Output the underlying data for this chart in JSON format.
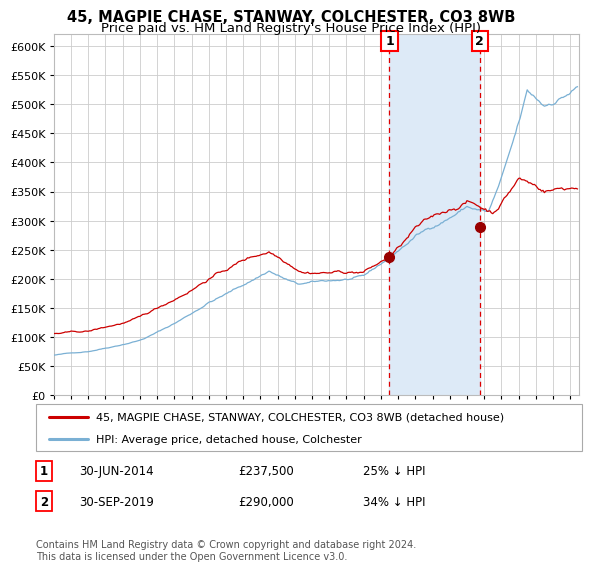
{
  "title": "45, MAGPIE CHASE, STANWAY, COLCHESTER, CO3 8WB",
  "subtitle": "Price paid vs. HM Land Registry's House Price Index (HPI)",
  "title_fontsize": 10.5,
  "subtitle_fontsize": 9.5,
  "hpi_color": "#7ab0d4",
  "price_color": "#cc0000",
  "marker_color": "#990000",
  "background_color": "#ffffff",
  "plot_bg_color": "#ffffff",
  "grid_color": "#cccccc",
  "shade_color": "#ddeaf7",
  "ylim": [
    0,
    620000
  ],
  "yticks": [
    0,
    50000,
    100000,
    150000,
    200000,
    250000,
    300000,
    350000,
    400000,
    450000,
    500000,
    550000,
    600000
  ],
  "sale1_date": 2014.5,
  "sale1_price": 237500,
  "sale2_date": 2019.75,
  "sale2_price": 290000,
  "legend_label_price": "45, MAGPIE CHASE, STANWAY, COLCHESTER, CO3 8WB (detached house)",
  "legend_label_hpi": "HPI: Average price, detached house, Colchester",
  "footer": "Contains HM Land Registry data © Crown copyright and database right 2024.\nThis data is licensed under the Open Government Licence v3.0.",
  "xmin": 1995.0,
  "xmax": 2025.5
}
